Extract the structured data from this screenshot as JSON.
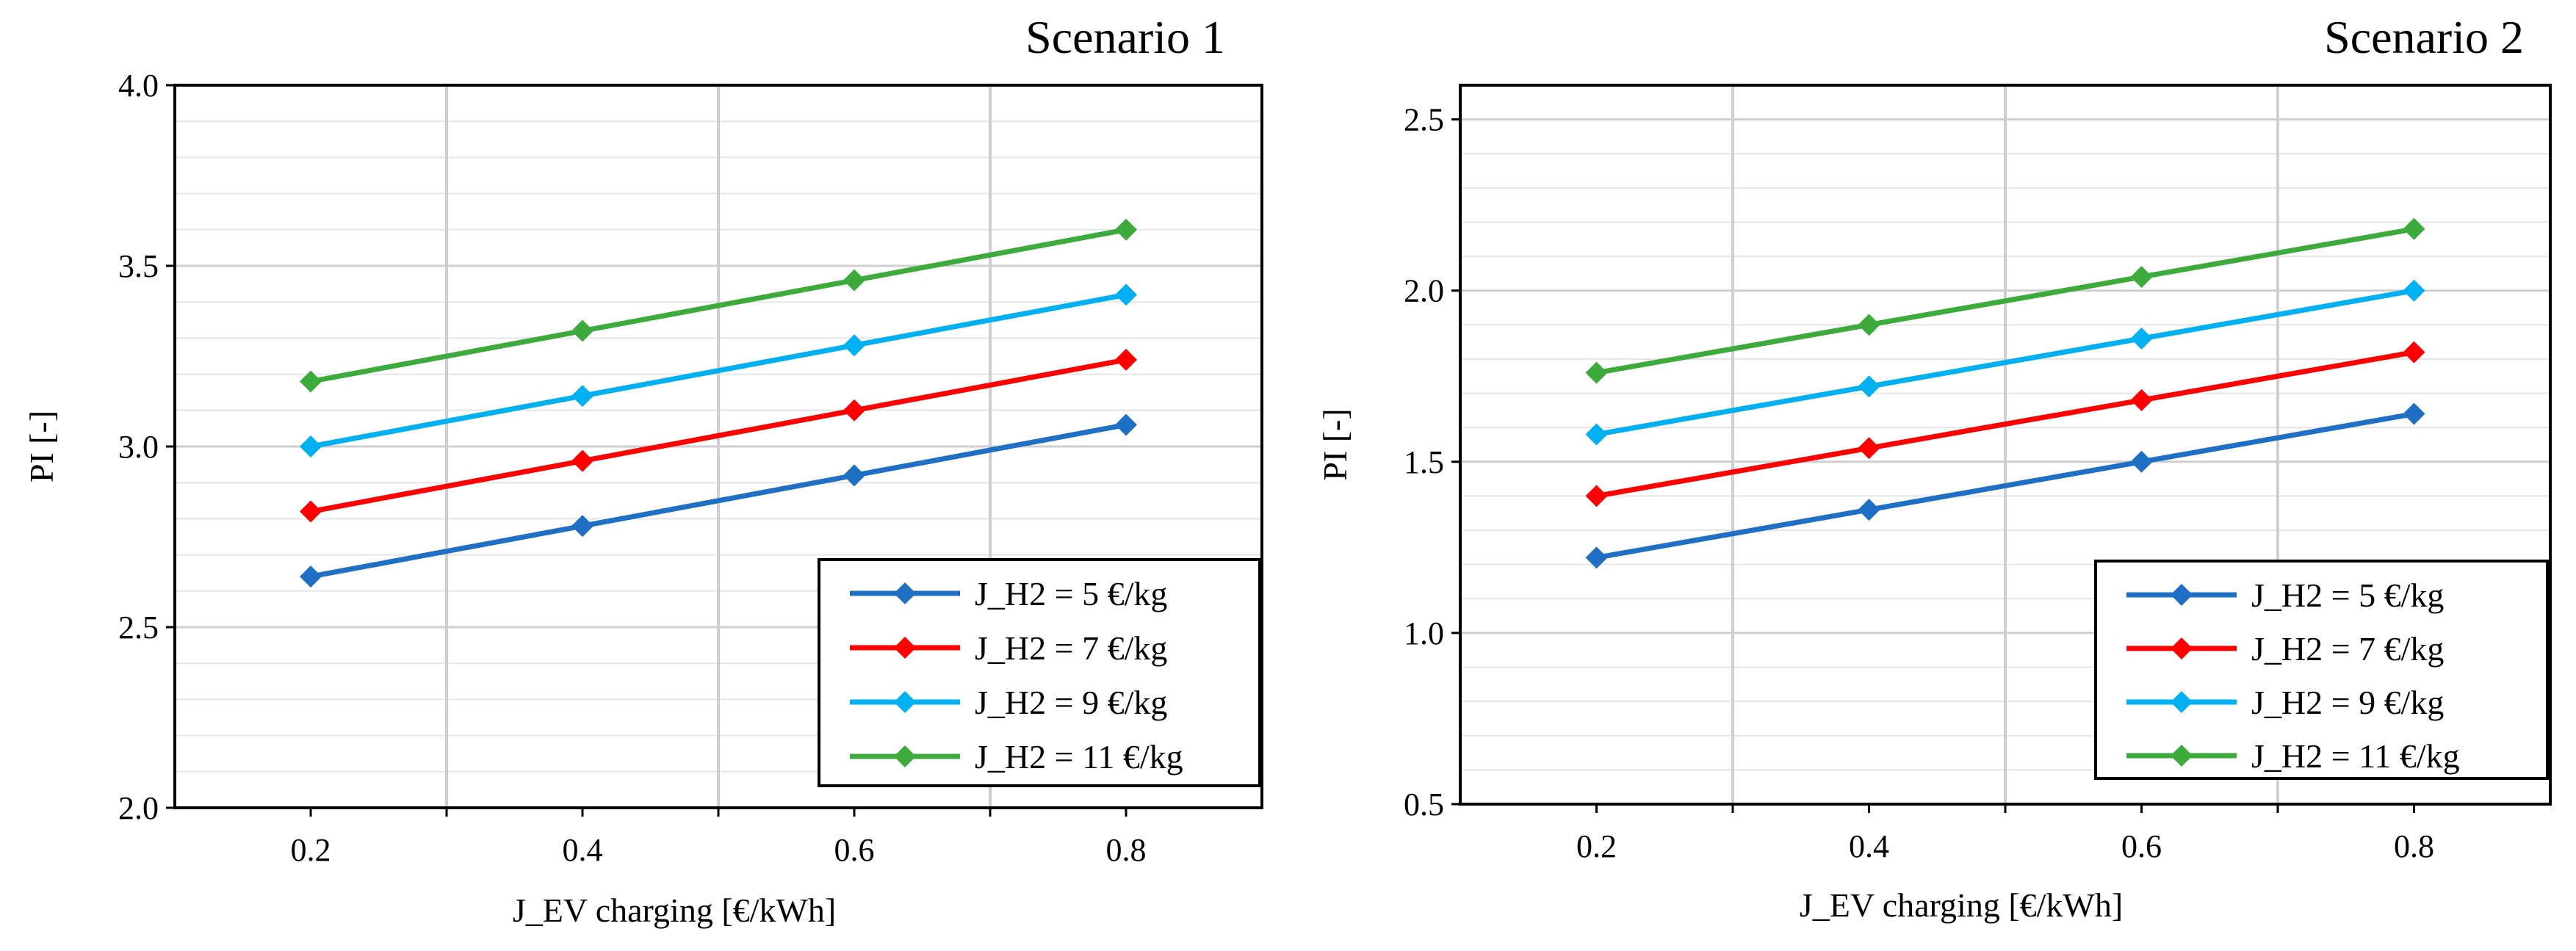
{
  "chart_data": [
    {
      "type": "line",
      "title": "Scenario 1",
      "xlabel": "J_EV charging [€/kWh]",
      "ylabel": "PI [-]",
      "xlim": [
        0.1,
        0.9
      ],
      "ylim": [
        2.0,
        4.0
      ],
      "xticks": [
        "0.2",
        "0.4",
        "0.6",
        "0.8"
      ],
      "yticks": [
        "2.0",
        "2.5",
        "3.0",
        "3.5",
        "4.0"
      ],
      "x": [
        0.2,
        0.4,
        0.6,
        0.8
      ],
      "grid": true,
      "legend": "bottom-right",
      "series": [
        {
          "name": "J_H2 = 5 €/kg",
          "color": "#1f6fc4",
          "values": [
            2.64,
            2.78,
            2.92,
            3.06
          ]
        },
        {
          "name": "J_H2 = 7 €/kg",
          "color": "#ff0000",
          "values": [
            2.82,
            2.96,
            3.1,
            3.24
          ]
        },
        {
          "name": "J_H2 = 9 €/kg",
          "color": "#00b0f0",
          "values": [
            3.0,
            3.14,
            3.28,
            3.42
          ]
        },
        {
          "name": "J_H2 = 11 €/kg",
          "color": "#3cab3c",
          "values": [
            3.18,
            3.32,
            3.46,
            3.6
          ]
        }
      ]
    },
    {
      "type": "line",
      "title": "Scenario 2",
      "xlabel": "J_EV charging [€/kWh]",
      "ylabel": "PI [-]",
      "xlim": [
        0.1,
        0.9
      ],
      "ylim": [
        0.5,
        2.6
      ],
      "xticks": [
        "0.2",
        "0.4",
        "0.6",
        "0.8"
      ],
      "yticks": [
        "0.5",
        "1.0",
        "1.5",
        "2.0",
        "2.5"
      ],
      "x": [
        0.2,
        0.4,
        0.6,
        0.8
      ],
      "grid": true,
      "legend": "bottom-right",
      "series": [
        {
          "name": "J_H2 = 5 €/kg",
          "color": "#1f6fc4",
          "values": [
            1.22,
            1.36,
            1.5,
            1.64
          ]
        },
        {
          "name": "J_H2 = 7 €/kg",
          "color": "#ff0000",
          "values": [
            1.4,
            1.54,
            1.68,
            1.82
          ]
        },
        {
          "name": "J_H2 = 9 €/kg",
          "color": "#00b0f0",
          "values": [
            1.58,
            1.72,
            1.86,
            2.0
          ]
        },
        {
          "name": "J_H2 = 11 €/kg",
          "color": "#3cab3c",
          "values": [
            1.76,
            1.9,
            2.04,
            2.18
          ]
        }
      ]
    }
  ]
}
